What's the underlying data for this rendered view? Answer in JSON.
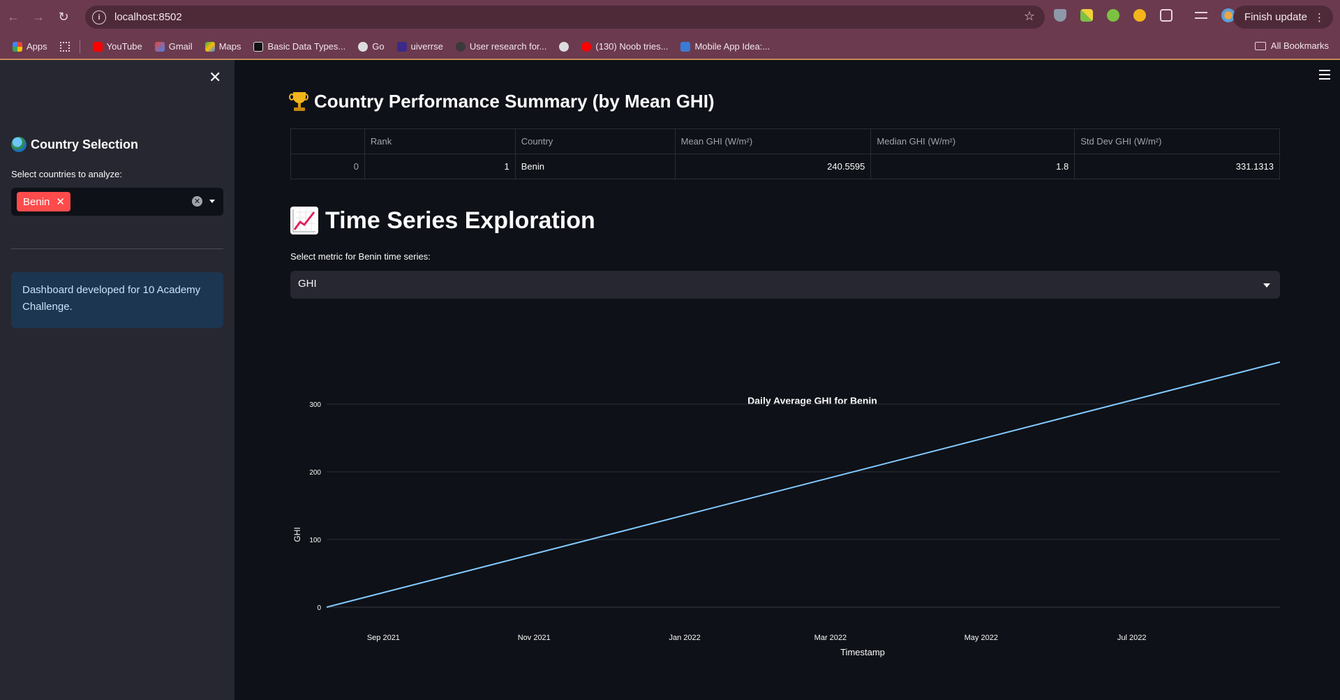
{
  "browser": {
    "url": "localhost:8502",
    "finish_update": "Finish update",
    "bookmarks": [
      {
        "label": "Apps",
        "color": "#4285f4"
      },
      {
        "label": "YouTube",
        "color": "#ff0000"
      },
      {
        "label": "Gmail",
        "color": "#ea4335"
      },
      {
        "label": "Maps",
        "color": "#34a853"
      },
      {
        "label": "Basic Data Types...",
        "color": "#111111"
      },
      {
        "label": "Go",
        "color": "#dddddd"
      },
      {
        "label": "uiverrse",
        "color": "#3b2a88"
      },
      {
        "label": "User research for...",
        "color": "#3a3a3a"
      },
      {
        "label": "",
        "color": "#dddddd"
      },
      {
        "label": "(130) Noob tries...",
        "color": "#ff0000"
      },
      {
        "label": "Mobile App Idea:...",
        "color": "#3a7bd5"
      }
    ],
    "all_bookmarks": "All Bookmarks"
  },
  "sidebar": {
    "heading": "Country Selection",
    "select_label": "Select countries to analyze:",
    "selected_tags": [
      "Benin"
    ],
    "info": "Dashboard developed for 10 Academy Challenge."
  },
  "summary": {
    "title": "Country Performance Summary (by Mean GHI)",
    "columns": [
      "",
      "Rank",
      "Country",
      "Mean GHI (W/m²)",
      "Median GHI (W/m²)",
      "Std Dev GHI (W/m²)"
    ],
    "rows": [
      {
        "index": "0",
        "rank": "1",
        "country": "Benin",
        "mean": "240.5595",
        "median": "1.8",
        "std": "331.1313"
      }
    ]
  },
  "timeseries": {
    "title": "Time Series Exploration",
    "select_label": "Select metric for Benin time series:",
    "selected_metric": "GHI"
  },
  "colors": {
    "accent": "#ff4b4b",
    "line": "#83c9ff"
  },
  "chart_data": {
    "type": "line",
    "title": "Daily Average GHI for Benin",
    "xlabel": "Timestamp",
    "ylabel": "GHI",
    "x_ticks": [
      "Sep 2021",
      "Nov 2021",
      "Jan 2022",
      "Mar 2022",
      "May 2022",
      "Jul 2022"
    ],
    "y_ticks": [
      0,
      100,
      200,
      300
    ],
    "xlim": [
      "2021-08-09",
      "2022-08-30"
    ],
    "ylim": [
      0,
      365
    ],
    "grid": true,
    "series": [
      {
        "x": [
          "2021-08-09",
          "2022-08-30"
        ],
        "y": [
          0,
          362
        ]
      }
    ]
  }
}
